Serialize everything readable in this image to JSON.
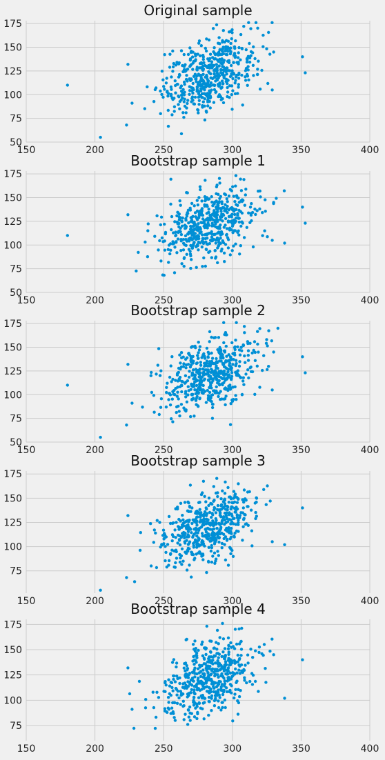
{
  "chart_data": [
    {
      "type": "scatter",
      "title": "Original sample",
      "xlim": [
        150,
        400
      ],
      "ylim": [
        50,
        178
      ],
      "xticks": [
        "150",
        "200",
        "250",
        "300",
        "350",
        "400"
      ],
      "yticks": [
        "50",
        "75",
        "100",
        "125",
        "150",
        "175"
      ],
      "color": "#008fd5",
      "grid": true
    },
    {
      "type": "scatter",
      "title": "Bootstrap sample 1",
      "xlim": [
        150,
        400
      ],
      "ylim": [
        50,
        178
      ],
      "xticks": [
        "150",
        "200",
        "250",
        "300",
        "350",
        "400"
      ],
      "yticks": [
        "50",
        "75",
        "100",
        "125",
        "150",
        "175"
      ],
      "color": "#008fd5",
      "grid": true
    },
    {
      "type": "scatter",
      "title": "Bootstrap sample 2",
      "xlim": [
        150,
        400
      ],
      "ylim": [
        50,
        178
      ],
      "xticks": [
        "150",
        "200",
        "250",
        "300",
        "350",
        "400"
      ],
      "yticks": [
        "50",
        "75",
        "100",
        "125",
        "150",
        "175"
      ],
      "color": "#008fd5",
      "grid": true
    },
    {
      "type": "scatter",
      "title": "Bootstrap sample 3",
      "xlim": [
        150,
        400
      ],
      "ylim": [
        52,
        178
      ],
      "xticks": [
        "150",
        "200",
        "250",
        "300",
        "350",
        "400"
      ],
      "yticks": [
        "75",
        "100",
        "125",
        "150",
        "175"
      ],
      "color": "#008fd5",
      "grid": true
    },
    {
      "type": "scatter",
      "title": "Bootstrap sample 4",
      "xlim": [
        150,
        400
      ],
      "ylim": [
        60,
        180
      ],
      "xticks": [
        "150",
        "200",
        "250",
        "300",
        "350",
        "400"
      ],
      "yticks": [
        "75",
        "100",
        "125",
        "150",
        "175"
      ],
      "color": "#008fd5",
      "grid": true
    }
  ]
}
